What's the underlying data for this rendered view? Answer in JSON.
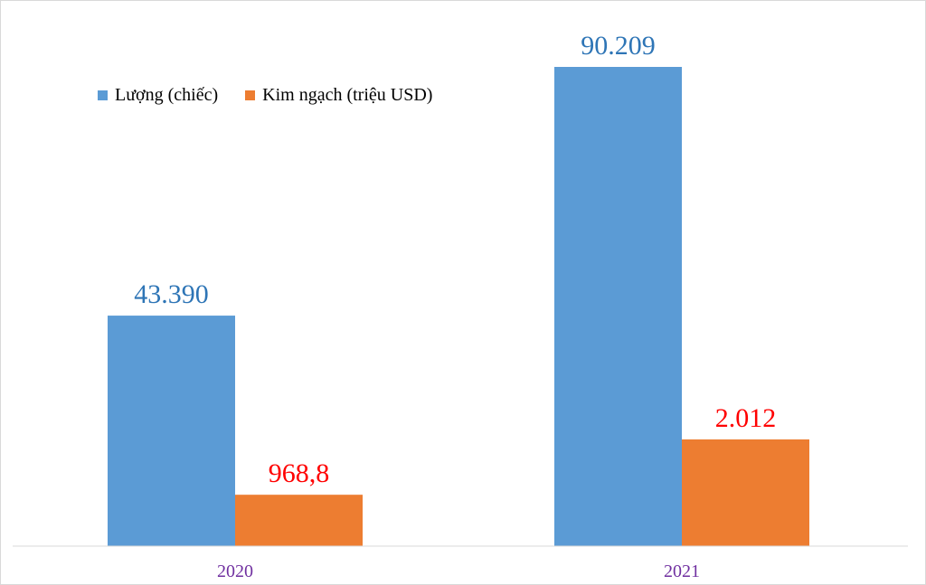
{
  "chart_data": {
    "type": "bar",
    "categories": [
      "2020",
      "2021"
    ],
    "series": [
      {
        "name": "Lượng (chiếc)",
        "values": [
          43390,
          90209
        ],
        "labels": [
          "43.390",
          "90.209"
        ],
        "color": "#5b9bd5",
        "label_color": "#2e75b6"
      },
      {
        "name": "Kim ngạch (triệu USD)",
        "values": [
          968.8,
          2012
        ],
        "labels": [
          "968,8",
          "2.012"
        ],
        "color": "#ed7d31",
        "label_color": "#ff0000"
      }
    ],
    "axis_label_color": "#7030a0",
    "legend_position": "top-left",
    "grid": false
  }
}
